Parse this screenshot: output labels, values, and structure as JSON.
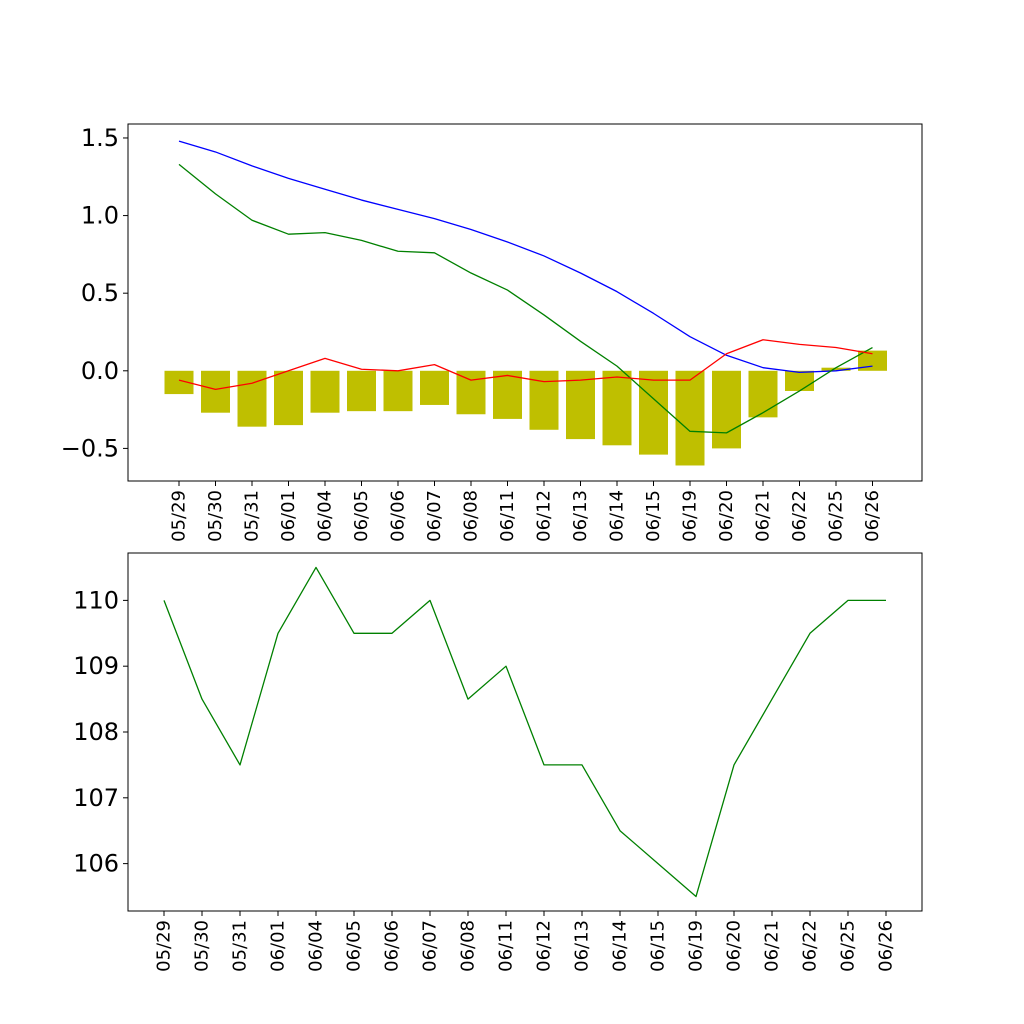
{
  "chart_data": [
    {
      "type": "bar",
      "title": "",
      "xlabel": "",
      "ylabel": "",
      "categories": [
        "05/29",
        "05/30",
        "05/31",
        "06/01",
        "06/04",
        "06/05",
        "06/06",
        "06/07",
        "06/08",
        "06/11",
        "06/12",
        "06/13",
        "06/14",
        "06/15",
        "06/19",
        "06/20",
        "06/21",
        "06/22",
        "06/25",
        "06/26"
      ],
      "ylim": [
        -0.71,
        1.59
      ],
      "yticks": [
        "1.5",
        "1.0",
        "0.5",
        "0.0",
        "−0.5"
      ],
      "ytick_values": [
        1.5,
        1.0,
        0.5,
        0.0,
        -0.5
      ],
      "grid": false,
      "bar_color": "#bfbf00",
      "bars": [
        -0.15,
        -0.27,
        -0.36,
        -0.35,
        -0.27,
        -0.26,
        -0.26,
        -0.22,
        -0.28,
        -0.31,
        -0.38,
        -0.44,
        -0.48,
        -0.54,
        -0.61,
        -0.5,
        -0.3,
        -0.13,
        0.02,
        0.13
      ],
      "series": [
        {
          "color": "#0000ff",
          "values": [
            1.48,
            1.41,
            1.32,
            1.24,
            1.17,
            1.1,
            1.04,
            0.98,
            0.91,
            0.83,
            0.74,
            0.63,
            0.51,
            0.37,
            0.22,
            0.1,
            0.02,
            -0.01,
            0.0,
            0.03
          ]
        },
        {
          "color": "#008000",
          "values": [
            1.33,
            1.14,
            0.97,
            0.88,
            0.89,
            0.84,
            0.77,
            0.76,
            0.63,
            0.52,
            0.36,
            0.19,
            0.03,
            -0.18,
            -0.39,
            -0.4,
            -0.27,
            -0.13,
            0.02,
            0.15
          ]
        },
        {
          "color": "#ff0000",
          "values": [
            -0.06,
            -0.12,
            -0.08,
            0.0,
            0.08,
            0.01,
            0.0,
            0.04,
            -0.06,
            -0.03,
            -0.07,
            -0.06,
            -0.04,
            -0.06,
            -0.06,
            0.11,
            0.2,
            0.17,
            0.15,
            0.11
          ]
        }
      ]
    },
    {
      "type": "line",
      "title": "",
      "xlabel": "",
      "ylabel": "",
      "categories": [
        "05/29",
        "05/30",
        "05/31",
        "06/01",
        "06/04",
        "06/05",
        "06/06",
        "06/07",
        "06/08",
        "06/11",
        "06/12",
        "06/13",
        "06/14",
        "06/15",
        "06/19",
        "06/20",
        "06/21",
        "06/22",
        "06/25",
        "06/26"
      ],
      "ylim": [
        105.28,
        110.72
      ],
      "yticks": [
        "110",
        "109",
        "108",
        "107",
        "106"
      ],
      "ytick_values": [
        110,
        109,
        108,
        107,
        106
      ],
      "grid": false,
      "series": [
        {
          "color": "#008000",
          "values": [
            110,
            108.5,
            107.5,
            109.5,
            110.5,
            109.5,
            109.5,
            110,
            108.5,
            109,
            107.5,
            107.5,
            106.5,
            106,
            105.5,
            107.5,
            108.5,
            109.5,
            110,
            110
          ]
        }
      ]
    }
  ]
}
